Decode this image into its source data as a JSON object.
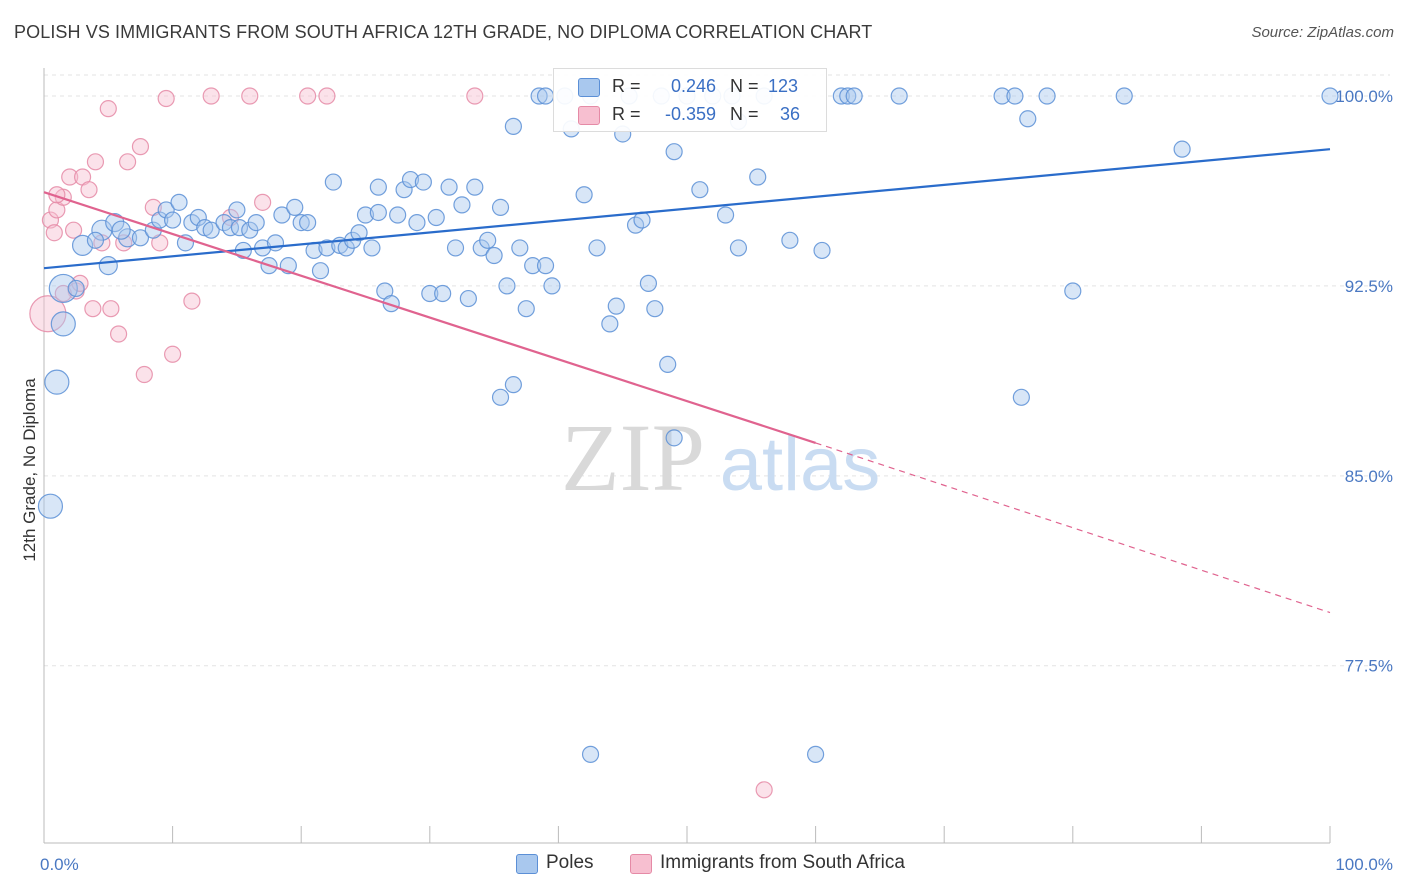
{
  "title": "POLISH VS IMMIGRANTS FROM SOUTH AFRICA 12TH GRADE, NO DIPLOMA CORRELATION CHART",
  "source": "Source: ZipAtlas.com",
  "watermark": {
    "zip": "ZIP",
    "atlas": "atlas"
  },
  "colors": {
    "poles_fill": "#a9c8ee",
    "poles_stroke": "#5b8fd6",
    "poles_line": "#2a6ccb",
    "sa_fill": "#f7bfd0",
    "sa_stroke": "#e58aa6",
    "sa_line": "#e0638f",
    "tick_label": "#4a78c2",
    "grid": "#e3e3e3"
  },
  "stats": [
    {
      "r_label": "R =",
      "r_value": "0.246",
      "n_label": "N =",
      "n_value": "123"
    },
    {
      "r_label": "R =",
      "r_value": "-0.359",
      "n_label": "N =",
      "n_value": "36"
    }
  ],
  "legend": [
    {
      "label": "Poles"
    },
    {
      "label": "Immigrants from South Africa"
    }
  ],
  "chart_data": {
    "type": "scatter",
    "title": "POLISH VS IMMIGRANTS FROM SOUTH AFRICA 12TH GRADE, NO DIPLOMA CORRELATION CHART",
    "xlabel": "",
    "ylabel": "12th Grade, No Diploma",
    "xlim": [
      0,
      100
    ],
    "ylim": [
      70.5,
      101.5
    ],
    "x_tick_labels": [
      {
        "value": 0,
        "label": "0.0%"
      },
      {
        "value": 100,
        "label": "100.0%"
      }
    ],
    "y_ticks": [
      {
        "value": 77.5,
        "label": "77.5%"
      },
      {
        "value": 85.0,
        "label": "85.0%"
      },
      {
        "value": 92.5,
        "label": "92.5%"
      },
      {
        "value": 100.0,
        "label": "100.0%"
      }
    ],
    "x_minor_ticks": [
      0,
      10,
      20,
      30,
      40,
      50,
      60,
      70,
      80,
      90,
      100
    ],
    "grid": true,
    "legend_position": "bottom-center",
    "series": [
      {
        "name": "Poles",
        "trend": {
          "x": [
            0,
            100
          ],
          "y": [
            93.2,
            97.9
          ]
        },
        "points": [
          [
            1.5,
            92.4,
            14
          ],
          [
            1.5,
            91.0,
            12
          ],
          [
            1.0,
            88.7,
            12
          ],
          [
            0.5,
            83.8,
            12
          ],
          [
            2.5,
            92.4,
            8
          ],
          [
            3.0,
            94.1,
            10
          ],
          [
            4.5,
            94.7,
            10
          ],
          [
            4.0,
            94.3,
            8
          ],
          [
            5.5,
            95.0,
            9
          ],
          [
            5.0,
            93.3,
            9
          ],
          [
            6.5,
            94.4,
            9
          ],
          [
            6.0,
            94.7,
            9
          ],
          [
            7.5,
            94.4,
            8
          ],
          [
            8.5,
            94.7,
            8
          ],
          [
            9.0,
            95.1,
            8
          ],
          [
            9.5,
            95.5,
            8
          ],
          [
            10.0,
            95.1,
            8
          ],
          [
            10.5,
            95.8,
            8
          ],
          [
            11.0,
            94.2,
            8
          ],
          [
            11.5,
            95.0,
            8
          ],
          [
            12.0,
            95.2,
            8
          ],
          [
            12.5,
            94.8,
            8
          ],
          [
            13.0,
            94.7,
            8
          ],
          [
            14.0,
            95.0,
            8
          ],
          [
            14.5,
            94.8,
            8
          ],
          [
            15.0,
            95.5,
            8
          ],
          [
            15.5,
            93.9,
            8
          ],
          [
            15.2,
            94.8,
            8
          ],
          [
            16.0,
            94.7,
            8
          ],
          [
            16.5,
            95.0,
            8
          ],
          [
            17.0,
            94.0,
            8
          ],
          [
            17.5,
            93.3,
            8
          ],
          [
            18.0,
            94.2,
            8
          ],
          [
            18.5,
            95.3,
            8
          ],
          [
            19.0,
            93.3,
            8
          ],
          [
            19.5,
            95.6,
            8
          ],
          [
            20.0,
            95.0,
            8
          ],
          [
            20.5,
            95.0,
            8
          ],
          [
            21.0,
            93.9,
            8
          ],
          [
            21.5,
            93.1,
            8
          ],
          [
            22.0,
            94.0,
            8
          ],
          [
            22.5,
            96.6,
            8
          ],
          [
            23.0,
            94.1,
            8
          ],
          [
            23.5,
            94.0,
            8
          ],
          [
            24.0,
            94.3,
            8
          ],
          [
            24.5,
            94.6,
            8
          ],
          [
            25.0,
            95.3,
            8
          ],
          [
            25.5,
            94.0,
            8
          ],
          [
            26.0,
            95.4,
            8
          ],
          [
            26.5,
            92.3,
            8
          ],
          [
            27.0,
            91.8,
            8
          ],
          [
            26.0,
            96.4,
            8
          ],
          [
            27.5,
            95.3,
            8
          ],
          [
            28.0,
            96.3,
            8
          ],
          [
            28.5,
            96.7,
            8
          ],
          [
            29.0,
            95.0,
            8
          ],
          [
            29.5,
            96.6,
            8
          ],
          [
            30.0,
            92.2,
            8
          ],
          [
            30.5,
            95.2,
            8
          ],
          [
            31.0,
            92.2,
            8
          ],
          [
            31.5,
            96.4,
            8
          ],
          [
            32.0,
            94.0,
            8
          ],
          [
            32.5,
            95.7,
            8
          ],
          [
            33.0,
            92.0,
            8
          ],
          [
            33.5,
            96.4,
            8
          ],
          [
            34.0,
            94.0,
            8
          ],
          [
            34.5,
            94.3,
            8
          ],
          [
            35.0,
            93.7,
            8
          ],
          [
            35.5,
            95.6,
            8
          ],
          [
            36.0,
            92.5,
            8
          ],
          [
            36.5,
            98.8,
            8
          ],
          [
            37.0,
            94.0,
            8
          ],
          [
            37.5,
            91.6,
            8
          ],
          [
            38.0,
            93.3,
            8
          ],
          [
            38.5,
            100.0,
            8
          ],
          [
            39.0,
            93.3,
            8
          ],
          [
            39.5,
            92.5,
            8
          ],
          [
            40.5,
            100.0,
            8
          ],
          [
            41.0,
            98.7,
            8
          ],
          [
            42.0,
            96.1,
            8
          ],
          [
            42.5,
            100.0,
            8
          ],
          [
            43.0,
            94.0,
            8
          ],
          [
            44.0,
            91.0,
            8
          ],
          [
            44.5,
            91.7,
            8
          ],
          [
            45.0,
            98.5,
            8
          ],
          [
            46.0,
            94.9,
            8
          ],
          [
            46.5,
            95.1,
            8
          ],
          [
            47.0,
            92.6,
            8
          ],
          [
            47.5,
            91.6,
            8
          ],
          [
            48.0,
            100.0,
            8
          ],
          [
            49.0,
            97.8,
            8
          ],
          [
            50.0,
            100.0,
            8
          ],
          [
            51.0,
            96.3,
            8
          ],
          [
            52.0,
            100.0,
            8
          ],
          [
            53.0,
            95.3,
            8
          ],
          [
            54.0,
            99.0,
            8
          ],
          [
            55.5,
            96.8,
            8
          ],
          [
            56.0,
            100.0,
            8
          ],
          [
            58.0,
            94.3,
            8
          ],
          [
            60.5,
            93.9,
            8
          ],
          [
            62.0,
            100.0,
            8
          ],
          [
            62.5,
            100.0,
            8
          ],
          [
            63.0,
            100.0,
            8
          ],
          [
            66.5,
            100.0,
            8
          ],
          [
            74.5,
            100.0,
            8
          ],
          [
            75.5,
            100.0,
            8
          ],
          [
            76.5,
            99.1,
            8
          ],
          [
            76.0,
            88.1,
            8
          ],
          [
            78.0,
            100.0,
            8
          ],
          [
            80.0,
            92.3,
            8
          ],
          [
            84.0,
            100.0,
            8
          ],
          [
            88.5,
            97.9,
            8
          ],
          [
            100.0,
            100.0,
            8
          ],
          [
            35.5,
            88.1,
            8
          ],
          [
            36.5,
            88.6,
            8
          ],
          [
            49.0,
            86.5,
            8
          ],
          [
            42.5,
            74.0,
            8
          ],
          [
            60.0,
            74.0,
            8
          ],
          [
            48.5,
            89.4,
            8
          ],
          [
            54.0,
            94.0,
            8
          ],
          [
            45.5,
            100.0,
            8
          ],
          [
            53.5,
            100.0,
            8
          ],
          [
            39.0,
            100.0,
            8
          ]
        ]
      },
      {
        "name": "Immigrants from South Africa",
        "trend": {
          "x": [
            0,
            60
          ],
          "y": [
            96.2,
            86.3
          ]
        },
        "trend_dashed": {
          "x": [
            60,
            100
          ],
          "y": [
            86.3,
            79.6
          ]
        },
        "points": [
          [
            0.3,
            91.4,
            18
          ],
          [
            0.5,
            95.1,
            8
          ],
          [
            0.8,
            94.6,
            8
          ],
          [
            1.0,
            95.5,
            8
          ],
          [
            1.5,
            96.0,
            8
          ],
          [
            2.0,
            96.8,
            8
          ],
          [
            2.3,
            94.7,
            8
          ],
          [
            2.5,
            92.3,
            8
          ],
          [
            2.8,
            92.6,
            8
          ],
          [
            3.0,
            96.8,
            8
          ],
          [
            3.5,
            96.3,
            8
          ],
          [
            3.8,
            91.6,
            8
          ],
          [
            4.0,
            97.4,
            8
          ],
          [
            4.5,
            94.2,
            8
          ],
          [
            5.0,
            99.5,
            8
          ],
          [
            5.2,
            91.6,
            8
          ],
          [
            5.8,
            90.6,
            8
          ],
          [
            6.2,
            94.2,
            8
          ],
          [
            6.5,
            97.4,
            8
          ],
          [
            7.5,
            98.0,
            8
          ],
          [
            7.8,
            89.0,
            8
          ],
          [
            8.5,
            95.6,
            8
          ],
          [
            9.0,
            94.2,
            8
          ],
          [
            9.5,
            99.9,
            8
          ],
          [
            10.0,
            89.8,
            8
          ],
          [
            11.5,
            91.9,
            8
          ],
          [
            13.0,
            100.0,
            8
          ],
          [
            14.5,
            95.2,
            8
          ],
          [
            16.0,
            100.0,
            8
          ],
          [
            17.0,
            95.8,
            8
          ],
          [
            20.5,
            100.0,
            8
          ],
          [
            22.0,
            100.0,
            8
          ],
          [
            33.5,
            100.0,
            8
          ],
          [
            1.0,
            96.1,
            8
          ],
          [
            1.5,
            92.2,
            8
          ],
          [
            56.0,
            72.6,
            8
          ]
        ]
      }
    ]
  }
}
